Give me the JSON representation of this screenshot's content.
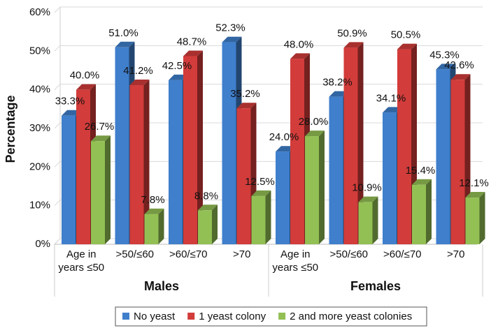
{
  "chart_data": {
    "type": "bar3d",
    "y_label": "Percentage",
    "categories": [
      "Age in years ≤50",
      ">50/≤60",
      ">60/≤70",
      ">70",
      "Age in years ≤50",
      ">50/≤60",
      ">60/≤70",
      ">70"
    ],
    "group_labels": [
      "Males",
      "Females"
    ],
    "series": [
      {
        "name": "No yeast",
        "color": "#3f7fcc",
        "values": [
          33.3,
          51.0,
          42.5,
          52.3,
          24.0,
          38.2,
          34.1,
          45.3
        ],
        "value_labels": [
          "33.3%",
          "51.0%",
          "42.5%",
          "52.3%",
          "24.0%",
          "38.2%",
          "34.1%",
          "45.3%"
        ]
      },
      {
        "name": "1 yeast colony",
        "color": "#d23c3a",
        "values": [
          40.0,
          41.2,
          48.7,
          35.2,
          48.0,
          50.9,
          50.5,
          42.6
        ],
        "value_labels": [
          "40.0%",
          "41.2%",
          "48.7%",
          "35.2%",
          "48.0%",
          "50.9%",
          "50.5%",
          "42.6%"
        ]
      },
      {
        "name": "2 and more yeast colonies",
        "color": "#93c054",
        "values": [
          26.7,
          7.8,
          8.8,
          12.5,
          28.0,
          10.9,
          15.4,
          12.1
        ],
        "value_labels": [
          "26.7%",
          "7.8%",
          "8.8%",
          "12.5%",
          "28.0%",
          "10.9%",
          "15.4%",
          "12.1%"
        ]
      }
    ],
    "ylim": [
      0,
      60
    ],
    "yticks": [
      {
        "value": 0,
        "label": "0%"
      },
      {
        "value": 10,
        "label": "10%"
      },
      {
        "value": 20,
        "label": "20%"
      },
      {
        "value": 30,
        "label": "30%"
      },
      {
        "value": 40,
        "label": "40%"
      },
      {
        "value": 50,
        "label": "50%"
      },
      {
        "value": 60,
        "label": "60%"
      }
    ],
    "grid": true,
    "legend": "bottom"
  }
}
